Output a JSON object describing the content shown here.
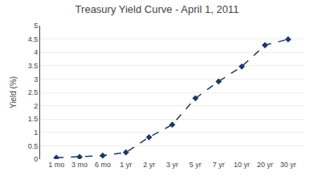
{
  "chart_data": {
    "type": "line",
    "title": "Treasury Yield Curve - April 1, 2011",
    "ylabel": "Yield (%)",
    "categories": [
      "1 mo",
      "3 mo",
      "6 mo",
      "1 yr",
      "2 yr",
      "3 yr",
      "5 yr",
      "7 yr",
      "10 yr",
      "20 yr",
      "30 yr"
    ],
    "values": [
      0.05,
      0.08,
      0.13,
      0.25,
      0.82,
      1.29,
      2.28,
      2.91,
      3.47,
      4.27,
      4.49
    ],
    "color": "#1F3864",
    "marker": "diamond",
    "line_style": "dashed",
    "ylim": [
      0,
      5
    ],
    "yticks": [
      0,
      0.5,
      1,
      1.5,
      2,
      2.5,
      3,
      3.5,
      4,
      4.5,
      5
    ],
    "grid": true
  }
}
